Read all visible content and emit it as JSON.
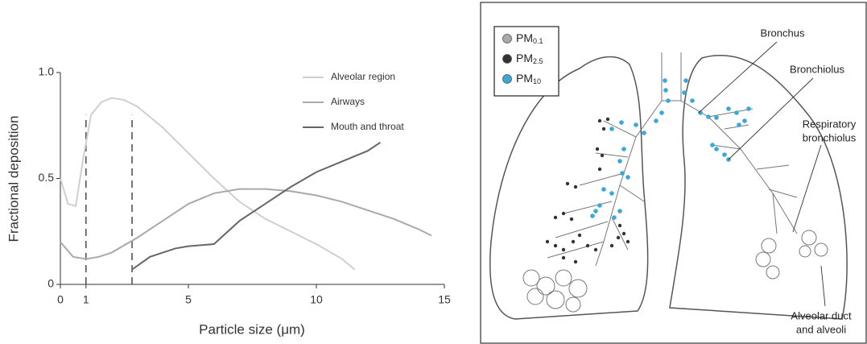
{
  "chart_data": {
    "type": "line",
    "x_label": "Particle size (μm)",
    "y_label": "Fractional deposition",
    "xlim": [
      0,
      15
    ],
    "xticks": [
      0,
      1,
      5,
      10,
      15
    ],
    "ylim": [
      0,
      1
    ],
    "yticks": [
      0,
      0.5,
      {
        "value": 1,
        "label": "1.0"
      }
    ],
    "reference_lines": [
      1,
      2.8
    ],
    "series": [
      {
        "name": "Alveolar region",
        "color": "#cfcfcf",
        "x": [
          0,
          0.3,
          0.6,
          0.9,
          1.2,
          1.6,
          2,
          2.5,
          3,
          4,
          5,
          6,
          7,
          8,
          9,
          10,
          11,
          11.5
        ],
        "values": [
          0.5,
          0.38,
          0.37,
          0.6,
          0.8,
          0.86,
          0.88,
          0.87,
          0.84,
          0.74,
          0.62,
          0.5,
          0.39,
          0.31,
          0.25,
          0.19,
          0.12,
          0.07
        ]
      },
      {
        "name": "Airways",
        "color": "#a9a9a9",
        "x": [
          0,
          0.5,
          1,
          1.5,
          2,
          3,
          4,
          5,
          6,
          7,
          8,
          9,
          10,
          11,
          12,
          13,
          14,
          14.5
        ],
        "values": [
          0.2,
          0.13,
          0.12,
          0.13,
          0.15,
          0.22,
          0.3,
          0.38,
          0.43,
          0.45,
          0.45,
          0.44,
          0.42,
          0.39,
          0.35,
          0.31,
          0.26,
          0.23
        ]
      },
      {
        "name": "Mouth and throat",
        "color": "#666666",
        "x": [
          2.8,
          3.5,
          4.5,
          5,
          6,
          7,
          8,
          9,
          10,
          11,
          12,
          12.5
        ],
        "values": [
          0.07,
          0.13,
          0.17,
          0.18,
          0.19,
          0.3,
          0.38,
          0.46,
          0.53,
          0.58,
          0.63,
          0.67
        ]
      }
    ]
  },
  "diagram": {
    "legend": [
      {
        "label": "PM",
        "subscript": "0.1",
        "color": "#aaaaaa"
      },
      {
        "label": "PM",
        "subscript": "2.5",
        "color": "#333333"
      },
      {
        "label": "PM",
        "subscript": "10",
        "color": "#3aa8d8"
      }
    ],
    "labels": [
      {
        "lines": [
          "Bronchus"
        ]
      },
      {
        "lines": [
          "Bronchiolus"
        ]
      },
      {
        "lines": [
          "Respiratory",
          "bronchiolus"
        ]
      },
      {
        "lines": [
          "Alveolar duct",
          "and alveoli"
        ]
      }
    ]
  }
}
